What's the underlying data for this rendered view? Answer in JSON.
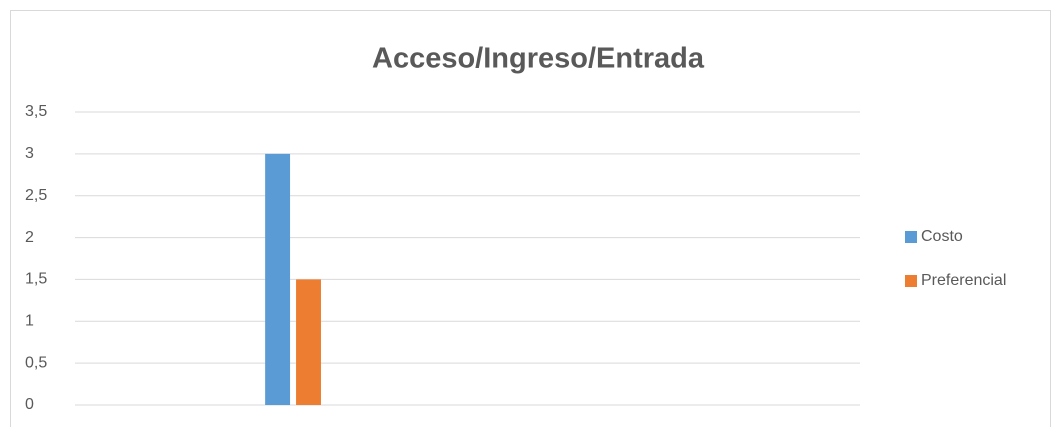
{
  "chart_data": {
    "type": "bar",
    "title": "Acceso/Ingreso/Entrada",
    "categories": [
      null,
      null,
      null,
      null,
      null,
      null,
      null,
      null,
      null
    ],
    "series": [
      {
        "name": "Costo",
        "color": "#5b9bd5",
        "values": [
          null,
          null,
          3,
          null,
          null,
          null,
          null,
          null,
          null
        ]
      },
      {
        "name": "Preferencial",
        "color": "#ed7d31",
        "values": [
          null,
          null,
          1.5,
          null,
          null,
          null,
          null,
          null,
          null
        ]
      }
    ],
    "ylim": [
      0,
      3.5
    ],
    "yticks": [
      0,
      {
        "value": 0.5,
        "label": "0,5"
      },
      1,
      {
        "value": 1.5,
        "label": "1,5"
      },
      2,
      {
        "value": 2.5,
        "label": "2,5"
      },
      3,
      {
        "value": 3.5,
        "label": "3,5"
      }
    ],
    "grid": true,
    "legend": "right"
  }
}
